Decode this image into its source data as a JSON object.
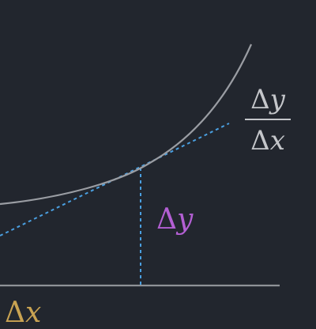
{
  "colors": {
    "background": "#22262e",
    "curve": "#9a9da3",
    "tangent": "#4a9fe0",
    "vertical_dashed": "#4a9fe0",
    "axis": "#8f9297",
    "slope_label": "#c4c6ca",
    "dy_label": "#b35fd3",
    "dx_label": "#c9a352"
  },
  "labels": {
    "slope": {
      "delta_num": "Δ",
      "var_num": "y",
      "delta_den": "Δ",
      "var_den": "x"
    },
    "dy": {
      "delta": "Δ",
      "var": "y"
    },
    "dx": {
      "delta": "Δ",
      "var": "x"
    }
  }
}
